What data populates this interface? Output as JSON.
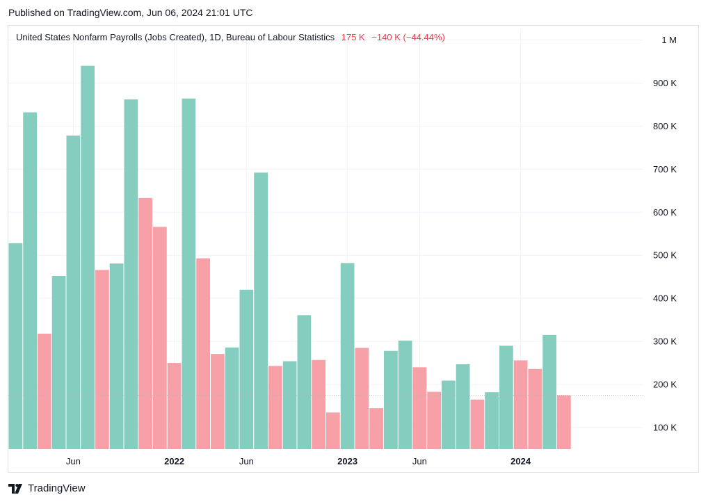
{
  "header": {
    "published_text": "Published on TradingView.com, Jun 06, 2024 21:01 UTC"
  },
  "legend": {
    "series_title": "United States Nonfarm Payrolls (Jobs Created), 1D, Bureau of Labour Statistics",
    "last_value": "175 K",
    "change": "−140 K (−44.44%)"
  },
  "footer": {
    "brand": "TradingView"
  },
  "colors": {
    "up": "#84cdbf",
    "down": "#f7a0a7",
    "grid": "#f0f3fa",
    "text": "#131722"
  },
  "chart_data": {
    "type": "bar",
    "title": "United States Nonfarm Payrolls (Jobs Created), 1D, Bureau of Labour Statistics",
    "ylim": [
      50,
      1000
    ],
    "y_tick_labels": [
      {
        "value": 1000,
        "label": "1 M"
      },
      {
        "value": 900,
        "label": "900 K"
      },
      {
        "value": 800,
        "label": "800 K"
      },
      {
        "value": 700,
        "label": "700 K"
      },
      {
        "value": 600,
        "label": "600 K"
      },
      {
        "value": 500,
        "label": "500 K"
      },
      {
        "value": 400,
        "label": "400 K"
      },
      {
        "value": 300,
        "label": "300 K"
      },
      {
        "value": 200,
        "label": "200 K"
      },
      {
        "value": 100,
        "label": "100 K"
      }
    ],
    "x_tick_labels": [
      {
        "index": 4.5,
        "label": "Jun",
        "bold": false
      },
      {
        "index": 11.5,
        "label": "2022",
        "bold": true
      },
      {
        "index": 16.5,
        "label": "Jun",
        "bold": false
      },
      {
        "index": 23.5,
        "label": "2023",
        "bold": true
      },
      {
        "index": 28.5,
        "label": "Jun",
        "bold": false
      },
      {
        "index": 35.5,
        "label": "2024",
        "bold": true
      }
    ],
    "grid": true,
    "last_value_line": 175,
    "values": [
      528,
      832,
      318,
      452,
      778,
      940,
      466,
      481,
      862,
      633,
      566,
      250,
      864,
      493,
      271,
      286,
      420,
      692,
      243,
      254,
      361,
      257,
      135,
      482,
      285,
      145,
      278,
      302,
      240,
      183,
      209,
      247,
      165,
      182,
      290,
      256,
      236,
      315,
      175
    ],
    "direction": [
      "up",
      "up",
      "down",
      "up",
      "up",
      "up",
      "down",
      "up",
      "up",
      "down",
      "down",
      "down",
      "up",
      "down",
      "down",
      "up",
      "up",
      "up",
      "down",
      "up",
      "up",
      "down",
      "down",
      "up",
      "down",
      "down",
      "up",
      "up",
      "down",
      "down",
      "up",
      "up",
      "down",
      "up",
      "up",
      "down",
      "down",
      "up",
      "down"
    ]
  }
}
